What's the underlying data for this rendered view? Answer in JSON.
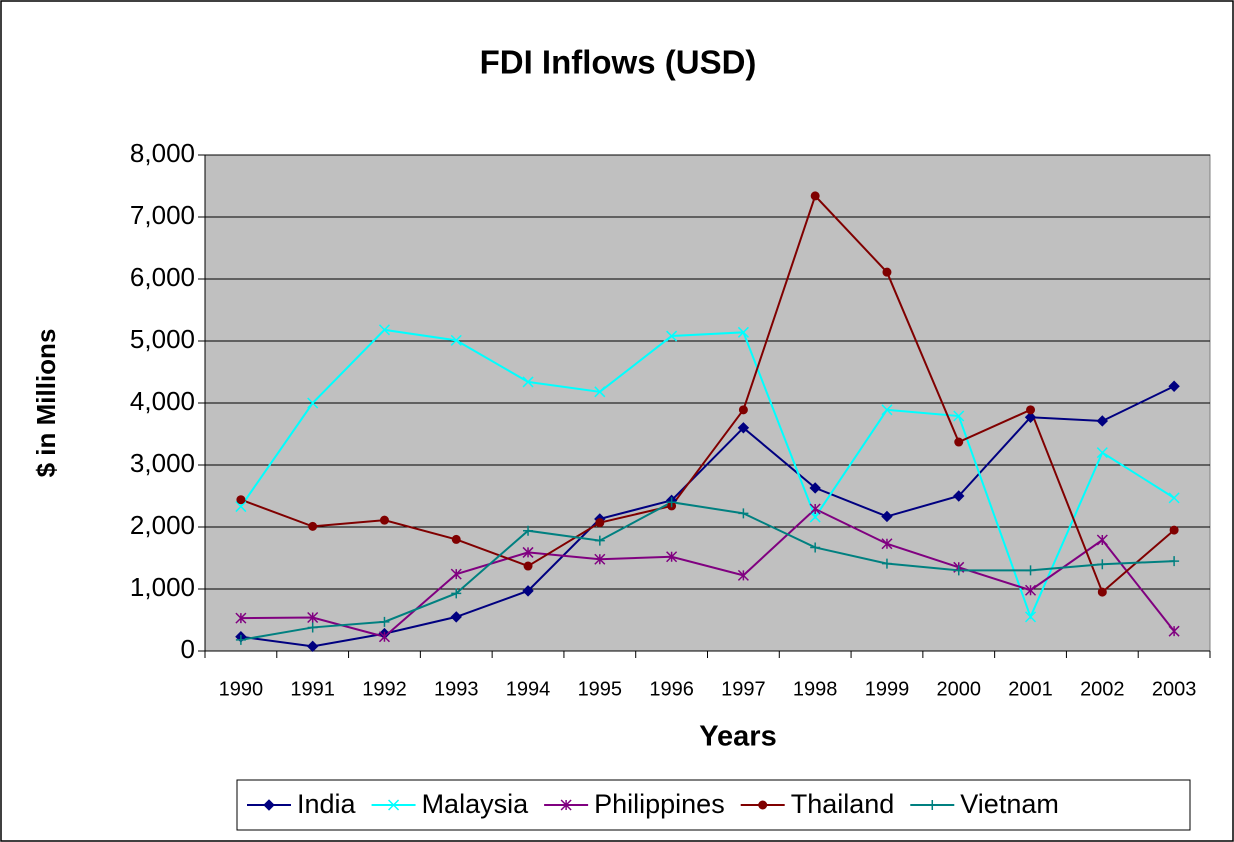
{
  "chart_data": {
    "type": "line",
    "title": "FDI Inflows (USD)",
    "x_label": "Years",
    "y_label": "$ in Millions",
    "categories": [
      "1990",
      "1991",
      "1992",
      "1993",
      "1994",
      "1995",
      "1996",
      "1997",
      "1998",
      "1999",
      "2000",
      "2001",
      "2002",
      "2003"
    ],
    "series": [
      {
        "name": "India",
        "color": "#000080",
        "marker": "diamond",
        "values": [
          230,
          75,
          280,
          550,
          970,
          2130,
          2430,
          3600,
          2630,
          2170,
          2500,
          3770,
          3710,
          4270
        ]
      },
      {
        "name": "Malaysia",
        "color": "#00ffff",
        "marker": "x",
        "values": [
          2330,
          4000,
          5180,
          5010,
          4340,
          4180,
          5080,
          5140,
          2160,
          3890,
          3790,
          550,
          3200,
          2470
        ]
      },
      {
        "name": "Philippines",
        "color": "#800080",
        "marker": "star",
        "values": [
          530,
          540,
          230,
          1240,
          1590,
          1480,
          1520,
          1220,
          2290,
          1730,
          1350,
          980,
          1790,
          320
        ]
      },
      {
        "name": "Thailand",
        "color": "#800000",
        "marker": "circle",
        "values": [
          2440,
          2010,
          2110,
          1800,
          1370,
          2070,
          2340,
          3890,
          7340,
          6110,
          3370,
          3890,
          950,
          1950
        ]
      },
      {
        "name": "Vietnam",
        "color": "#008080",
        "marker": "plus",
        "values": [
          180,
          380,
          470,
          930,
          1940,
          1780,
          2400,
          2220,
          1670,
          1410,
          1300,
          1300,
          1400,
          1450
        ]
      }
    ],
    "ylim": [
      0,
      8000
    ],
    "yticks": [
      0,
      {
        "value": 1000,
        "label": "1,000"
      },
      {
        "value": 2000,
        "label": "2,000"
      },
      {
        "value": 3000,
        "label": "3,000"
      },
      {
        "value": 4000,
        "label": "4,000"
      },
      {
        "value": 5000,
        "label": "5,000"
      },
      {
        "value": 6000,
        "label": "6,000"
      },
      {
        "value": 7000,
        "label": "7,000"
      },
      {
        "value": 8000,
        "label": "8,000"
      }
    ],
    "grid": true,
    "plot_background": "#c0c0c0",
    "legend": "bottom"
  }
}
